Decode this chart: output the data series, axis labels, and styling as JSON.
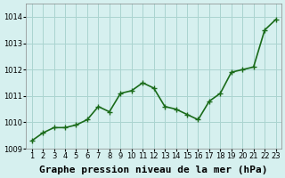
{
  "x": [
    1,
    2,
    3,
    4,
    5,
    6,
    7,
    8,
    9,
    10,
    11,
    12,
    13,
    14,
    15,
    16,
    17,
    18,
    19,
    20,
    21,
    22,
    23
  ],
  "y": [
    1009.3,
    1009.6,
    1009.8,
    1009.8,
    1009.9,
    1010.1,
    1010.6,
    1010.4,
    1011.1,
    1011.2,
    1011.5,
    1011.3,
    1010.6,
    1010.5,
    1010.3,
    1010.1,
    1010.8,
    1011.1,
    1011.9,
    1012.0,
    1012.1,
    1013.5,
    1013.9
  ],
  "line_color": "#1a6b1a",
  "marker": "P",
  "bg_color": "#d6f0ef",
  "grid_color": "#aad4d0",
  "xlabel": "Graphe pression niveau de la mer (hPa)",
  "xlabel_fontsize": 8,
  "xlabel_fontweight": "bold",
  "ylim": [
    1009.0,
    1014.5
  ],
  "yticks": [
    1009,
    1010,
    1011,
    1012,
    1013,
    1014
  ],
  "xlim": [
    0.5,
    23.5
  ],
  "xticks": [
    1,
    2,
    3,
    4,
    5,
    6,
    7,
    8,
    9,
    10,
    11,
    12,
    13,
    14,
    15,
    16,
    17,
    18,
    19,
    20,
    21,
    22,
    23
  ],
  "tick_fontsize": 6,
  "line_width": 1.2,
  "marker_size": 3
}
